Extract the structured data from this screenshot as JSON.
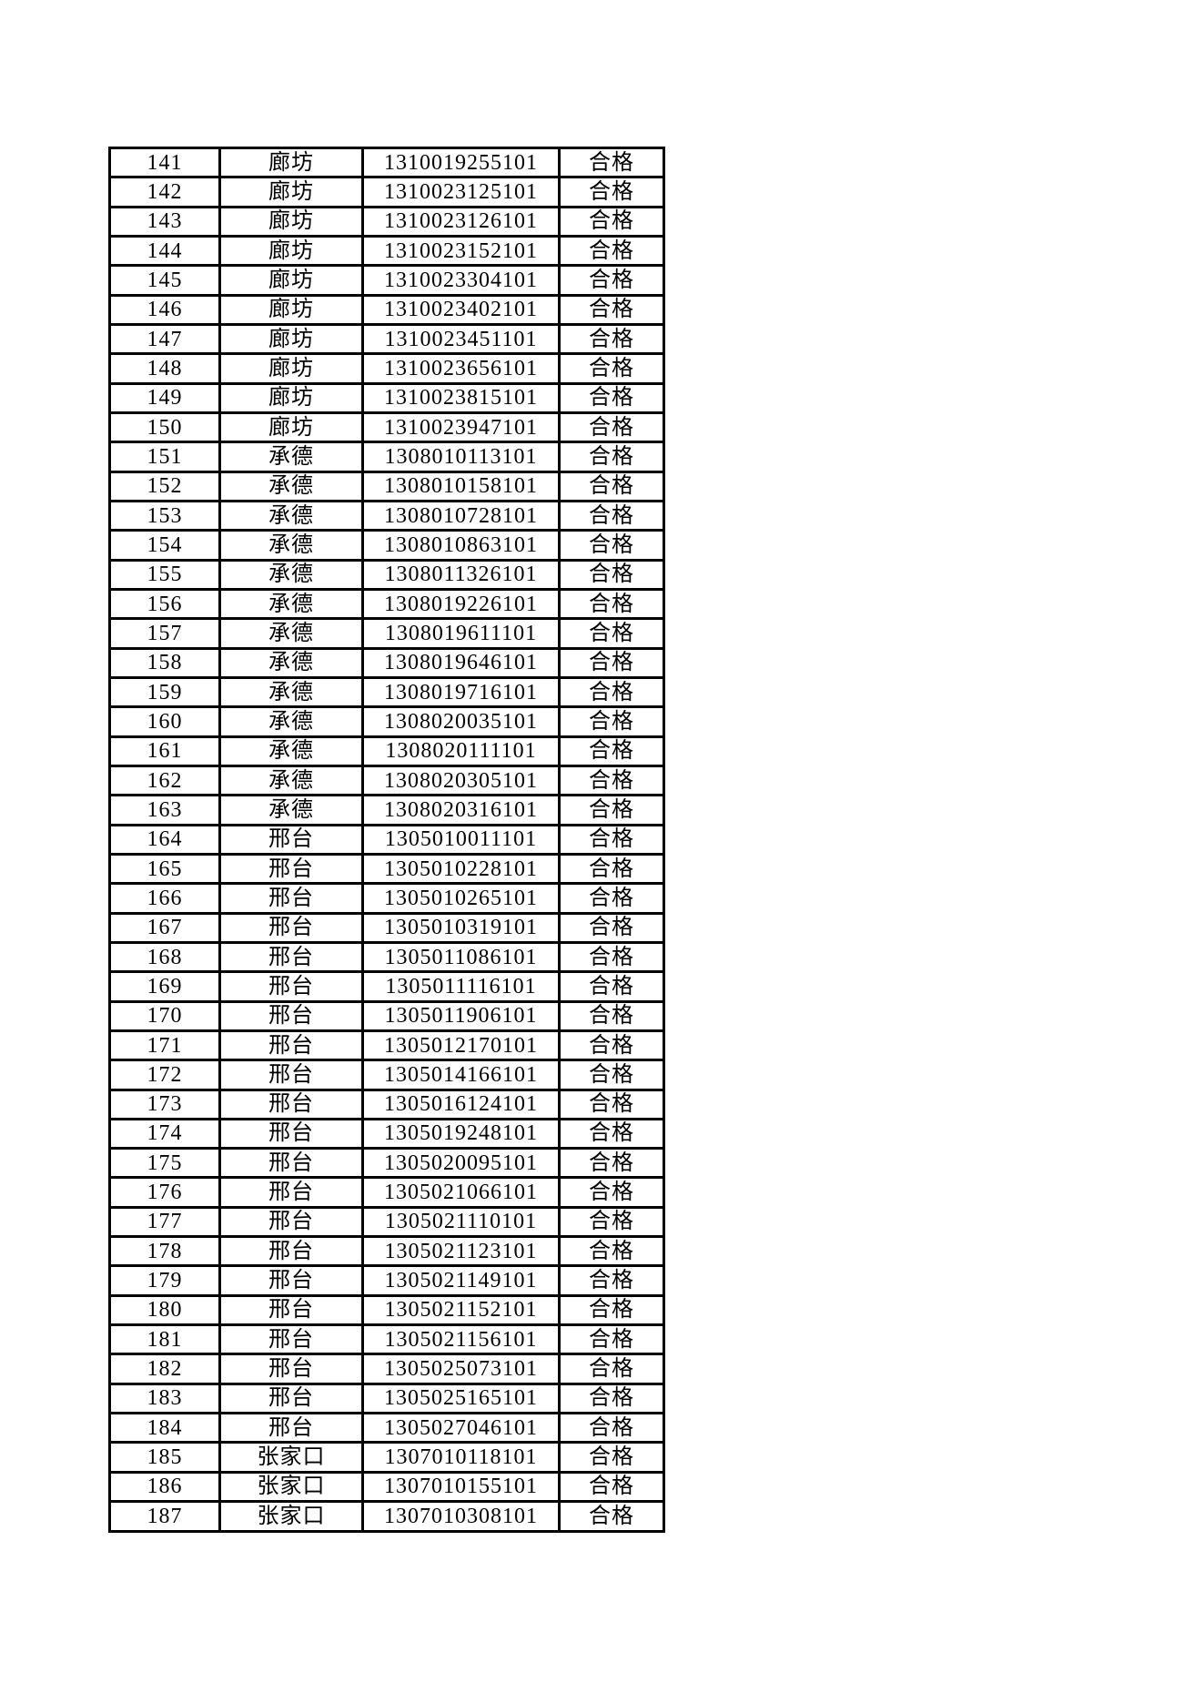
{
  "page": {
    "background_color": "#ffffff",
    "text_color": "#000000",
    "border_color": "#000000"
  },
  "table": {
    "result_pass_label": "合格",
    "rows": [
      {
        "no": "141",
        "city": "廊坊",
        "id": "1310019255101",
        "result": "合格"
      },
      {
        "no": "142",
        "city": "廊坊",
        "id": "1310023125101",
        "result": "合格"
      },
      {
        "no": "143",
        "city": "廊坊",
        "id": "1310023126101",
        "result": "合格"
      },
      {
        "no": "144",
        "city": "廊坊",
        "id": "1310023152101",
        "result": "合格"
      },
      {
        "no": "145",
        "city": "廊坊",
        "id": "1310023304101",
        "result": "合格"
      },
      {
        "no": "146",
        "city": "廊坊",
        "id": "1310023402101",
        "result": "合格"
      },
      {
        "no": "147",
        "city": "廊坊",
        "id": "1310023451101",
        "result": "合格"
      },
      {
        "no": "148",
        "city": "廊坊",
        "id": "1310023656101",
        "result": "合格"
      },
      {
        "no": "149",
        "city": "廊坊",
        "id": "1310023815101",
        "result": "合格"
      },
      {
        "no": "150",
        "city": "廊坊",
        "id": "1310023947101",
        "result": "合格"
      },
      {
        "no": "151",
        "city": "承德",
        "id": "1308010113101",
        "result": "合格"
      },
      {
        "no": "152",
        "city": "承德",
        "id": "1308010158101",
        "result": "合格"
      },
      {
        "no": "153",
        "city": "承德",
        "id": "1308010728101",
        "result": "合格"
      },
      {
        "no": "154",
        "city": "承德",
        "id": "1308010863101",
        "result": "合格"
      },
      {
        "no": "155",
        "city": "承德",
        "id": "1308011326101",
        "result": "合格"
      },
      {
        "no": "156",
        "city": "承德",
        "id": "1308019226101",
        "result": "合格"
      },
      {
        "no": "157",
        "city": "承德",
        "id": "1308019611101",
        "result": "合格"
      },
      {
        "no": "158",
        "city": "承德",
        "id": "1308019646101",
        "result": "合格"
      },
      {
        "no": "159",
        "city": "承德",
        "id": "1308019716101",
        "result": "合格"
      },
      {
        "no": "160",
        "city": "承德",
        "id": "1308020035101",
        "result": "合格"
      },
      {
        "no": "161",
        "city": "承德",
        "id": "1308020111101",
        "result": "合格"
      },
      {
        "no": "162",
        "city": "承德",
        "id": "1308020305101",
        "result": "合格"
      },
      {
        "no": "163",
        "city": "承德",
        "id": "1308020316101",
        "result": "合格"
      },
      {
        "no": "164",
        "city": "邢台",
        "id": "1305010011101",
        "result": "合格"
      },
      {
        "no": "165",
        "city": "邢台",
        "id": "1305010228101",
        "result": "合格"
      },
      {
        "no": "166",
        "city": "邢台",
        "id": "1305010265101",
        "result": "合格"
      },
      {
        "no": "167",
        "city": "邢台",
        "id": "1305010319101",
        "result": "合格"
      },
      {
        "no": "168",
        "city": "邢台",
        "id": "1305011086101",
        "result": "合格"
      },
      {
        "no": "169",
        "city": "邢台",
        "id": "1305011116101",
        "result": "合格"
      },
      {
        "no": "170",
        "city": "邢台",
        "id": "1305011906101",
        "result": "合格"
      },
      {
        "no": "171",
        "city": "邢台",
        "id": "1305012170101",
        "result": "合格"
      },
      {
        "no": "172",
        "city": "邢台",
        "id": "1305014166101",
        "result": "合格"
      },
      {
        "no": "173",
        "city": "邢台",
        "id": "1305016124101",
        "result": "合格"
      },
      {
        "no": "174",
        "city": "邢台",
        "id": "1305019248101",
        "result": "合格"
      },
      {
        "no": "175",
        "city": "邢台",
        "id": "1305020095101",
        "result": "合格"
      },
      {
        "no": "176",
        "city": "邢台",
        "id": "1305021066101",
        "result": "合格"
      },
      {
        "no": "177",
        "city": "邢台",
        "id": "1305021110101",
        "result": "合格"
      },
      {
        "no": "178",
        "city": "邢台",
        "id": "1305021123101",
        "result": "合格"
      },
      {
        "no": "179",
        "city": "邢台",
        "id": "1305021149101",
        "result": "合格"
      },
      {
        "no": "180",
        "city": "邢台",
        "id": "1305021152101",
        "result": "合格"
      },
      {
        "no": "181",
        "city": "邢台",
        "id": "1305021156101",
        "result": "合格"
      },
      {
        "no": "182",
        "city": "邢台",
        "id": "1305025073101",
        "result": "合格"
      },
      {
        "no": "183",
        "city": "邢台",
        "id": "1305025165101",
        "result": "合格"
      },
      {
        "no": "184",
        "city": "邢台",
        "id": "1305027046101",
        "result": "合格"
      },
      {
        "no": "185",
        "city": "张家口",
        "id": "1307010118101",
        "result": "合格"
      },
      {
        "no": "186",
        "city": "张家口",
        "id": "1307010155101",
        "result": "合格"
      },
      {
        "no": "187",
        "city": "张家口",
        "id": "1307010308101",
        "result": "合格"
      }
    ]
  }
}
